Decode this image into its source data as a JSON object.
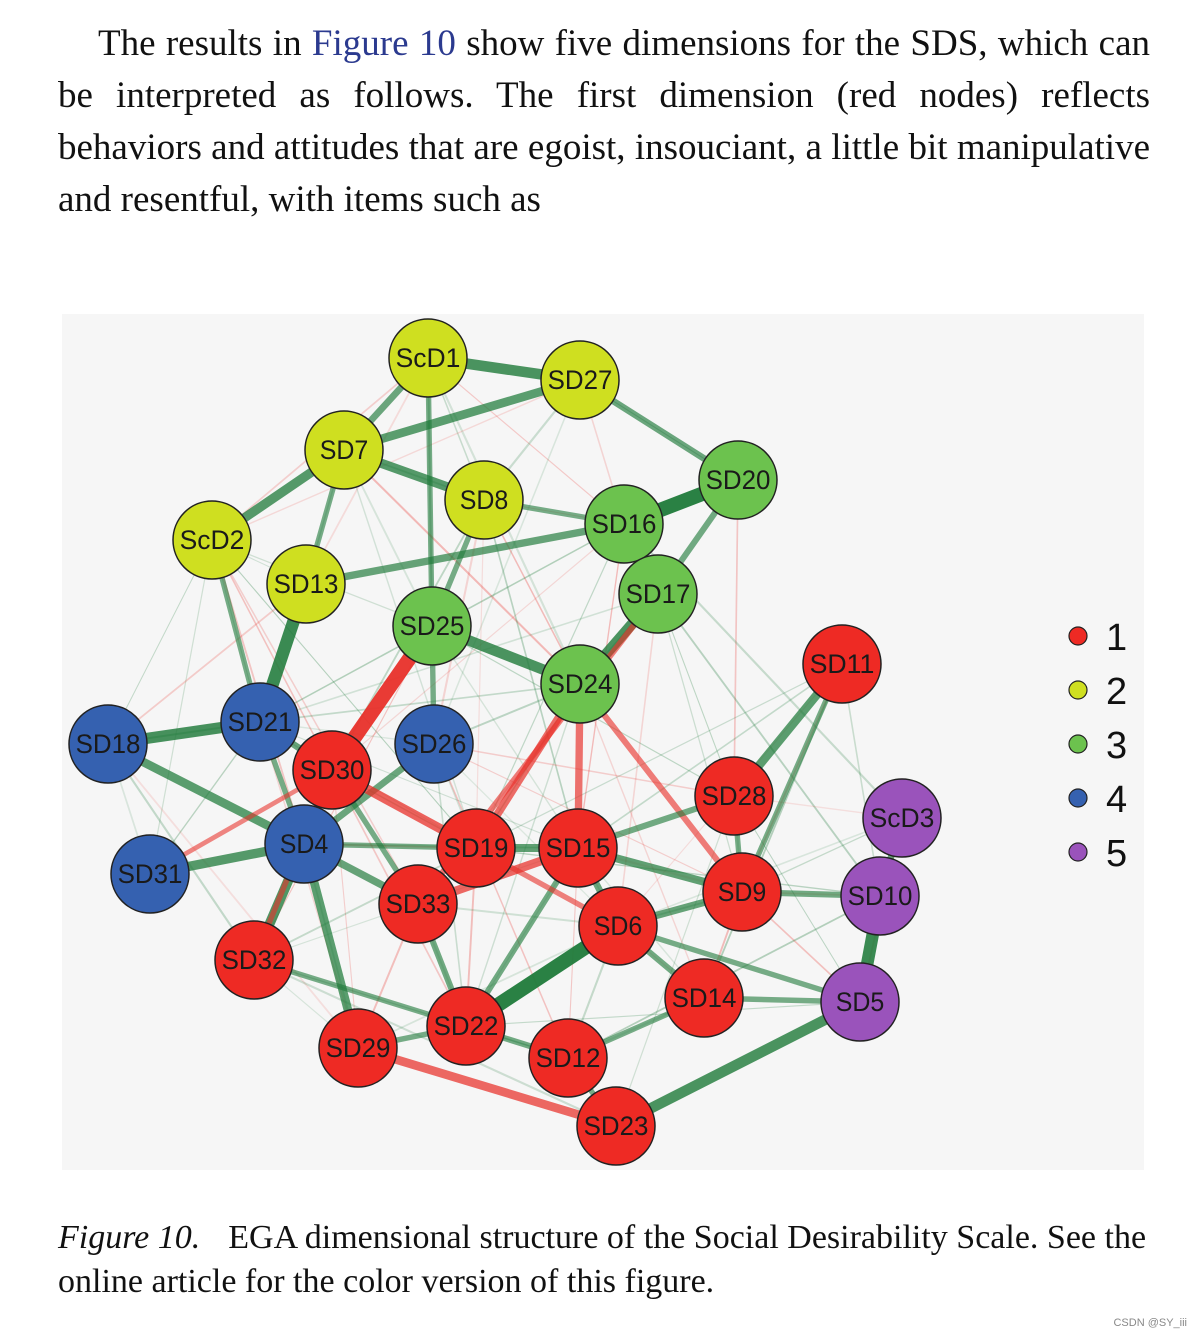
{
  "paragraph": {
    "before_link": "The results in ",
    "link_text": "Figure 10",
    "after_link": " show five dimensions for the SDS, which can be interpreted as follows. The first dimension (red nodes) reflects behaviors and attitudes that are egoist, insouciant, a little bit manipulative and resentful, with items such as"
  },
  "caption": {
    "label": "Figure 10.",
    "text": "EGA dimensional structure of the Social Desirability Scale. See the online article for the color version of this figure."
  },
  "watermark": "CSDN @SY_iii",
  "colors": {
    "1": "#ee2a24",
    "2": "#cfdf20",
    "3": "#6cc24e",
    "4": "#3561b0",
    "5": "#9a53bb",
    "positive_edge": "#1f7a3a",
    "negative_edge": "#e8302a"
  },
  "chart_data": {
    "type": "network",
    "title": "",
    "legend": {
      "placement": "right",
      "entries": [
        {
          "key": "1",
          "label": "1"
        },
        {
          "key": "2",
          "label": "2"
        },
        {
          "key": "3",
          "label": "3"
        },
        {
          "key": "4",
          "label": "4"
        },
        {
          "key": "5",
          "label": "5"
        }
      ]
    },
    "nodes": [
      {
        "id": "ScD1",
        "dimension": "2"
      },
      {
        "id": "SD27",
        "dimension": "2"
      },
      {
        "id": "SD7",
        "dimension": "2"
      },
      {
        "id": "SD8",
        "dimension": "2"
      },
      {
        "id": "ScD2",
        "dimension": "2"
      },
      {
        "id": "SD13",
        "dimension": "2"
      },
      {
        "id": "SD20",
        "dimension": "3"
      },
      {
        "id": "SD16",
        "dimension": "3"
      },
      {
        "id": "SD17",
        "dimension": "3"
      },
      {
        "id": "SD25",
        "dimension": "3"
      },
      {
        "id": "SD24",
        "dimension": "3"
      },
      {
        "id": "SD11",
        "dimension": "1"
      },
      {
        "id": "SD18",
        "dimension": "4"
      },
      {
        "id": "SD21",
        "dimension": "4"
      },
      {
        "id": "SD26",
        "dimension": "4"
      },
      {
        "id": "SD30",
        "dimension": "1"
      },
      {
        "id": "SD28",
        "dimension": "1"
      },
      {
        "id": "ScD3",
        "dimension": "5"
      },
      {
        "id": "SD4",
        "dimension": "4"
      },
      {
        "id": "SD19",
        "dimension": "1"
      },
      {
        "id": "SD15",
        "dimension": "1"
      },
      {
        "id": "SD31",
        "dimension": "4"
      },
      {
        "id": "SD9",
        "dimension": "1"
      },
      {
        "id": "SD10",
        "dimension": "5"
      },
      {
        "id": "SD33",
        "dimension": "1"
      },
      {
        "id": "SD6",
        "dimension": "1"
      },
      {
        "id": "SD32",
        "dimension": "1"
      },
      {
        "id": "SD14",
        "dimension": "1"
      },
      {
        "id": "SD5",
        "dimension": "5"
      },
      {
        "id": "SD22",
        "dimension": "1"
      },
      {
        "id": "SD29",
        "dimension": "1"
      },
      {
        "id": "SD12",
        "dimension": "1"
      },
      {
        "id": "SD23",
        "dimension": "1"
      }
    ],
    "edges": [
      {
        "source": "ScD1",
        "target": "SD27",
        "sign": "positive",
        "strength": 0.7
      },
      {
        "source": "ScD1",
        "target": "SD7",
        "sign": "positive",
        "strength": 0.4
      },
      {
        "source": "ScD1",
        "target": "SD25",
        "sign": "positive",
        "strength": 0.3
      },
      {
        "source": "SD27",
        "target": "SD7",
        "sign": "positive",
        "strength": 0.55
      },
      {
        "source": "SD27",
        "target": "SD20",
        "sign": "positive",
        "strength": 0.4
      },
      {
        "source": "SD7",
        "target": "SD8",
        "sign": "positive",
        "strength": 0.6
      },
      {
        "source": "SD7",
        "target": "ScD2",
        "sign": "positive",
        "strength": 0.6
      },
      {
        "source": "SD7",
        "target": "SD13",
        "sign": "positive",
        "strength": 0.3
      },
      {
        "source": "SD8",
        "target": "SD16",
        "sign": "positive",
        "strength": 0.3
      },
      {
        "source": "SD8",
        "target": "SD25",
        "sign": "positive",
        "strength": 0.3
      },
      {
        "source": "SD13",
        "target": "SD16",
        "sign": "positive",
        "strength": 0.45
      },
      {
        "source": "SD13",
        "target": "SD21",
        "sign": "positive",
        "strength": 0.85
      },
      {
        "source": "ScD2",
        "target": "SD21",
        "sign": "positive",
        "strength": 0.3
      },
      {
        "source": "SD16",
        "target": "SD20",
        "sign": "positive",
        "strength": 1.0
      },
      {
        "source": "SD16",
        "target": "SD17",
        "sign": "positive",
        "strength": 0.5
      },
      {
        "source": "SD17",
        "target": "SD24",
        "sign": "positive",
        "strength": 0.7
      },
      {
        "source": "SD20",
        "target": "SD17",
        "sign": "positive",
        "strength": 0.35
      },
      {
        "source": "SD25",
        "target": "SD24",
        "sign": "positive",
        "strength": 0.7
      },
      {
        "source": "SD25",
        "target": "SD26",
        "sign": "positive",
        "strength": 0.3
      },
      {
        "source": "SD25",
        "target": "SD30",
        "sign": "negative",
        "strength": 1.0
      },
      {
        "source": "SD24",
        "target": "SD15",
        "sign": "negative",
        "strength": 0.45
      },
      {
        "source": "SD24",
        "target": "SD19",
        "sign": "negative",
        "strength": 0.5
      },
      {
        "source": "SD24",
        "target": "SD9",
        "sign": "negative",
        "strength": 0.35
      },
      {
        "source": "SD17",
        "target": "SD33",
        "sign": "negative",
        "strength": 0.35
      },
      {
        "source": "SD18",
        "target": "SD21",
        "sign": "positive",
        "strength": 0.75
      },
      {
        "source": "SD18",
        "target": "SD4",
        "sign": "positive",
        "strength": 0.55
      },
      {
        "source": "SD21",
        "target": "SD4",
        "sign": "positive",
        "strength": 0.3
      },
      {
        "source": "SD21",
        "target": "SD30",
        "sign": "positive",
        "strength": 0.4
      },
      {
        "source": "SD26",
        "target": "SD4",
        "sign": "positive",
        "strength": 0.4
      },
      {
        "source": "SD30",
        "target": "SD19",
        "sign": "negative",
        "strength": 0.6
      },
      {
        "source": "SD30",
        "target": "SD33",
        "sign": "positive",
        "strength": 0.3
      },
      {
        "source": "SD4",
        "target": "SD31",
        "sign": "positive",
        "strength": 0.6
      },
      {
        "source": "SD4",
        "target": "SD32",
        "sign": "positive",
        "strength": 0.65
      },
      {
        "source": "SD4",
        "target": "SD29",
        "sign": "positive",
        "strength": 0.55
      },
      {
        "source": "SD4",
        "target": "SD33",
        "sign": "positive",
        "strength": 0.45
      },
      {
        "source": "SD4",
        "target": "SD19",
        "sign": "positive",
        "strength": 0.3
      },
      {
        "source": "SD19",
        "target": "SD15",
        "sign": "positive",
        "strength": 0.5
      },
      {
        "source": "SD33",
        "target": "SD15",
        "sign": "negative",
        "strength": 0.55
      },
      {
        "source": "SD15",
        "target": "SD9",
        "sign": "positive",
        "strength": 0.5
      },
      {
        "source": "SD15",
        "target": "SD6",
        "sign": "positive",
        "strength": 0.4
      },
      {
        "source": "SD15",
        "target": "SD22",
        "sign": "positive",
        "strength": 0.35
      },
      {
        "source": "SD28",
        "target": "SD11",
        "sign": "positive",
        "strength": 0.55
      },
      {
        "source": "SD28",
        "target": "SD15",
        "sign": "positive",
        "strength": 0.35
      },
      {
        "source": "SD28",
        "target": "SD9",
        "sign": "positive",
        "strength": 0.3
      },
      {
        "source": "SD11",
        "target": "SD9",
        "sign": "positive",
        "strength": 0.3
      },
      {
        "source": "ScD3",
        "target": "SD10",
        "sign": "positive",
        "strength": 0.4
      },
      {
        "source": "SD10",
        "target": "SD5",
        "sign": "positive",
        "strength": 0.85
      },
      {
        "source": "SD10",
        "target": "SD9",
        "sign": "positive",
        "strength": 0.35
      },
      {
        "source": "SD9",
        "target": "SD6",
        "sign": "positive",
        "strength": 0.45
      },
      {
        "source": "SD6",
        "target": "SD22",
        "sign": "positive",
        "strength": 1.0
      },
      {
        "source": "SD6",
        "target": "SD14",
        "sign": "positive",
        "strength": 0.35
      },
      {
        "source": "SD6",
        "target": "SD5",
        "sign": "positive",
        "strength": 0.3
      },
      {
        "source": "SD14",
        "target": "SD5",
        "sign": "positive",
        "strength": 0.3
      },
      {
        "source": "SD5",
        "target": "SD23",
        "sign": "positive",
        "strength": 0.7
      },
      {
        "source": "SD33",
        "target": "SD22",
        "sign": "positive",
        "strength": 0.35
      },
      {
        "source": "SD32",
        "target": "SD22",
        "sign": "positive",
        "strength": 0.3
      },
      {
        "source": "SD22",
        "target": "SD12",
        "sign": "positive",
        "strength": 0.35
      },
      {
        "source": "SD29",
        "target": "SD22",
        "sign": "positive",
        "strength": 0.3
      },
      {
        "source": "SD29",
        "target": "SD23",
        "sign": "negative",
        "strength": 0.55
      },
      {
        "source": "SD12",
        "target": "SD23",
        "sign": "positive",
        "strength": 0.3
      },
      {
        "source": "SD14",
        "target": "SD12",
        "sign": "positive",
        "strength": 0.3
      },
      {
        "source": "SD32",
        "target": "SD30",
        "sign": "negative",
        "strength": 0.3
      },
      {
        "source": "SD19",
        "target": "SD6",
        "sign": "negative",
        "strength": 0.3
      },
      {
        "source": "SD31",
        "target": "SD30",
        "sign": "negative",
        "strength": 0.25
      }
    ]
  }
}
